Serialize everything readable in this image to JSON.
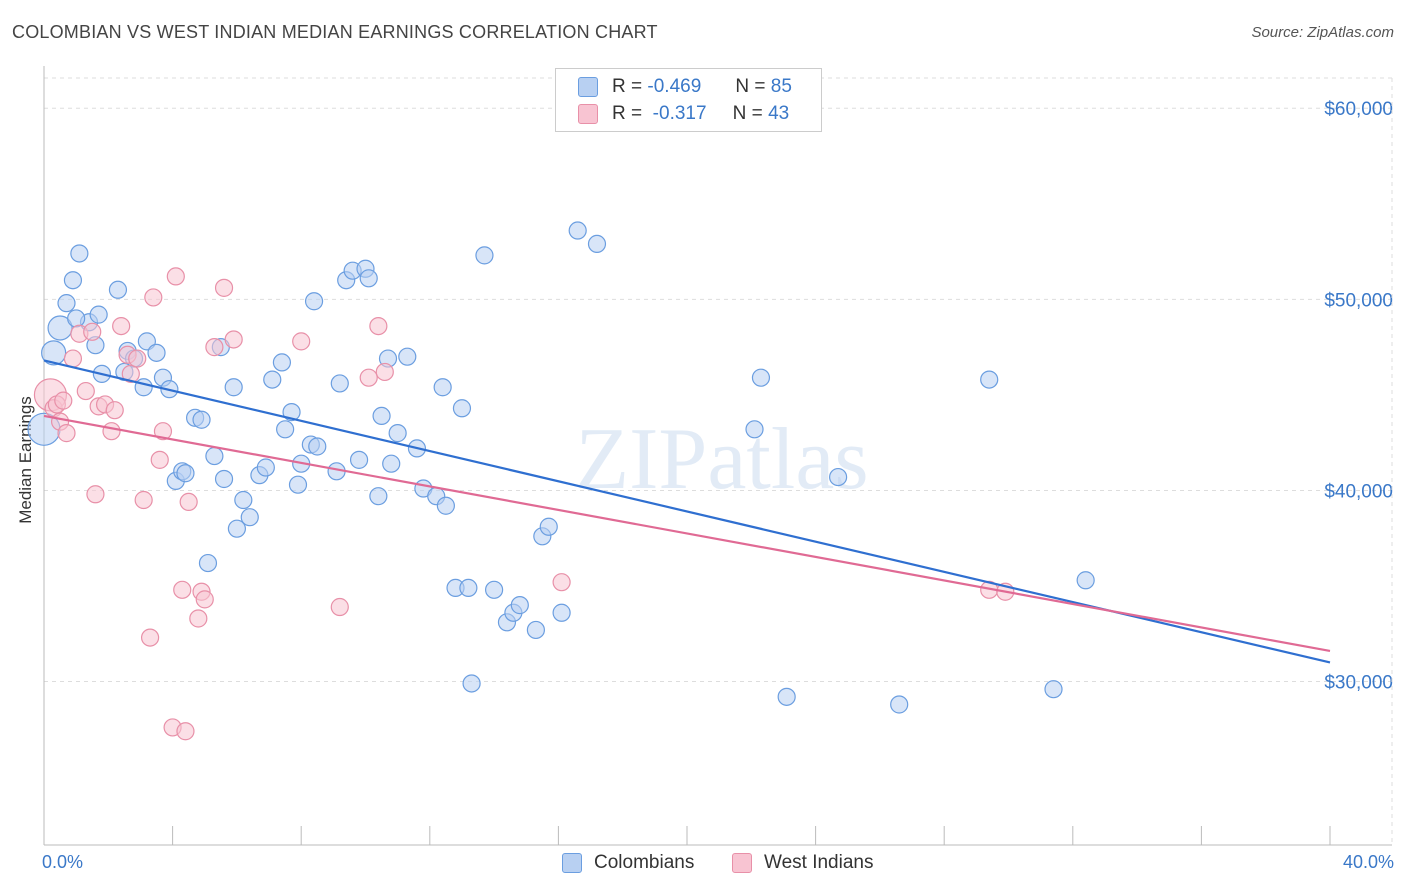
{
  "chart_data": {
    "type": "scatter",
    "title": "COLOMBIAN VS WEST INDIAN MEDIAN EARNINGS CORRELATION CHART",
    "source": "Source: ZipAtlas.com",
    "xlabel": "",
    "ylabel": "Median Earnings",
    "xlim": [
      0,
      40
    ],
    "ylim": [
      21500,
      62000
    ],
    "x_tick_labels": {
      "left": "0.0%",
      "right": "40.0%"
    },
    "y_ticks": [
      {
        "value": 30000,
        "label": "$30,000"
      },
      {
        "value": 40000,
        "label": "$40,000"
      },
      {
        "value": 50000,
        "label": "$50,000"
      },
      {
        "value": 60000,
        "label": "$60,000"
      }
    ],
    "grid": true,
    "watermark": "ZIPatlas",
    "legend": {
      "position": "top-center",
      "rows": [
        {
          "series": "Colombians",
          "r_label": "R =",
          "r_value": "-0.469",
          "n_label": "N =",
          "n_value": "85"
        },
        {
          "series": "West Indians",
          "r_label": "R =",
          "r_value": "-0.317",
          "n_label": "N =",
          "n_value": "43"
        }
      ]
    },
    "series": [
      {
        "name": "Colombians",
        "color": "#6b9ee0",
        "fill": "#b8d0f2",
        "trend_color": "#2f6fd0",
        "trend": {
          "x0": 0,
          "y0": 46800,
          "x1": 40,
          "y1": 31000
        },
        "points": [
          [
            0.0,
            43200
          ],
          [
            0.3,
            47200
          ],
          [
            0.5,
            48500
          ],
          [
            0.7,
            49800
          ],
          [
            0.9,
            51000
          ],
          [
            1.1,
            52400
          ],
          [
            1.4,
            48800
          ],
          [
            1.6,
            47600
          ],
          [
            1.7,
            49200
          ],
          [
            1.8,
            46100
          ],
          [
            2.3,
            50500
          ],
          [
            2.6,
            47300
          ],
          [
            2.8,
            46900
          ],
          [
            3.1,
            45400
          ],
          [
            3.2,
            47800
          ],
          [
            3.5,
            47200
          ],
          [
            3.7,
            45900
          ],
          [
            3.9,
            45300
          ],
          [
            4.1,
            40500
          ],
          [
            4.3,
            41000
          ],
          [
            4.4,
            40900
          ],
          [
            4.7,
            43800
          ],
          [
            4.9,
            43700
          ],
          [
            5.1,
            36200
          ],
          [
            5.3,
            41800
          ],
          [
            5.5,
            47500
          ],
          [
            5.6,
            40600
          ],
          [
            5.9,
            45400
          ],
          [
            6.0,
            38000
          ],
          [
            6.2,
            39500
          ],
          [
            6.4,
            38600
          ],
          [
            6.7,
            40800
          ],
          [
            6.9,
            41200
          ],
          [
            7.1,
            45800
          ],
          [
            7.4,
            46700
          ],
          [
            7.5,
            43200
          ],
          [
            7.7,
            44100
          ],
          [
            7.9,
            40300
          ],
          [
            8.0,
            41400
          ],
          [
            8.3,
            42400
          ],
          [
            8.4,
            49900
          ],
          [
            8.5,
            42300
          ],
          [
            9.1,
            41000
          ],
          [
            9.2,
            45600
          ],
          [
            9.4,
            51000
          ],
          [
            9.6,
            51500
          ],
          [
            9.8,
            41600
          ],
          [
            10.0,
            51600
          ],
          [
            10.1,
            51100
          ],
          [
            10.4,
            39700
          ],
          [
            10.5,
            43900
          ],
          [
            10.7,
            46900
          ],
          [
            10.8,
            41400
          ],
          [
            11.0,
            43000
          ],
          [
            11.3,
            47000
          ],
          [
            11.6,
            42200
          ],
          [
            11.8,
            40100
          ],
          [
            12.2,
            39700
          ],
          [
            12.4,
            45400
          ],
          [
            12.5,
            39200
          ],
          [
            12.8,
            34900
          ],
          [
            13.0,
            44300
          ],
          [
            13.2,
            34900
          ],
          [
            13.3,
            29900
          ],
          [
            13.7,
            52300
          ],
          [
            14.0,
            34800
          ],
          [
            14.4,
            33100
          ],
          [
            14.6,
            33600
          ],
          [
            14.8,
            34000
          ],
          [
            15.3,
            32700
          ],
          [
            15.5,
            37600
          ],
          [
            15.7,
            38100
          ],
          [
            16.1,
            33600
          ],
          [
            16.6,
            53600
          ],
          [
            17.2,
            52900
          ],
          [
            22.1,
            43200
          ],
          [
            22.3,
            45900
          ],
          [
            23.1,
            29200
          ],
          [
            24.7,
            40700
          ],
          [
            26.6,
            28800
          ],
          [
            29.4,
            45800
          ],
          [
            31.4,
            29600
          ],
          [
            32.4,
            35300
          ],
          [
            1.0,
            49000
          ],
          [
            2.5,
            46200
          ]
        ]
      },
      {
        "name": "West Indians",
        "color": "#e890a8",
        "fill": "#f8c4d2",
        "trend_color": "#e06a94",
        "trend": {
          "x0": 0,
          "y0": 43900,
          "x1": 40,
          "y1": 31600
        },
        "points": [
          [
            0.2,
            45000
          ],
          [
            0.3,
            44300
          ],
          [
            0.4,
            44500
          ],
          [
            0.5,
            43600
          ],
          [
            0.7,
            43000
          ],
          [
            0.9,
            46900
          ],
          [
            1.1,
            48200
          ],
          [
            1.3,
            45200
          ],
          [
            1.5,
            48300
          ],
          [
            1.6,
            39800
          ],
          [
            1.7,
            44400
          ],
          [
            1.9,
            44500
          ],
          [
            2.1,
            43100
          ],
          [
            2.2,
            44200
          ],
          [
            2.4,
            48600
          ],
          [
            2.6,
            47100
          ],
          [
            2.7,
            46100
          ],
          [
            2.9,
            46900
          ],
          [
            3.1,
            39500
          ],
          [
            3.3,
            32300
          ],
          [
            3.4,
            50100
          ],
          [
            3.6,
            41600
          ],
          [
            3.7,
            43100
          ],
          [
            4.0,
            27600
          ],
          [
            4.1,
            51200
          ],
          [
            4.3,
            34800
          ],
          [
            4.4,
            27400
          ],
          [
            4.5,
            39400
          ],
          [
            4.8,
            33300
          ],
          [
            4.9,
            34700
          ],
          [
            5.0,
            34300
          ],
          [
            5.3,
            47500
          ],
          [
            5.6,
            50600
          ],
          [
            5.9,
            47900
          ],
          [
            8.0,
            47800
          ],
          [
            9.2,
            33900
          ],
          [
            10.1,
            45900
          ],
          [
            10.4,
            48600
          ],
          [
            10.6,
            46200
          ],
          [
            16.1,
            35200
          ],
          [
            29.4,
            34800
          ],
          [
            29.9,
            34700
          ],
          [
            0.6,
            44700
          ]
        ]
      }
    ]
  },
  "legend_bottom": [
    {
      "label": "Colombians"
    },
    {
      "label": "West Indians"
    }
  ]
}
